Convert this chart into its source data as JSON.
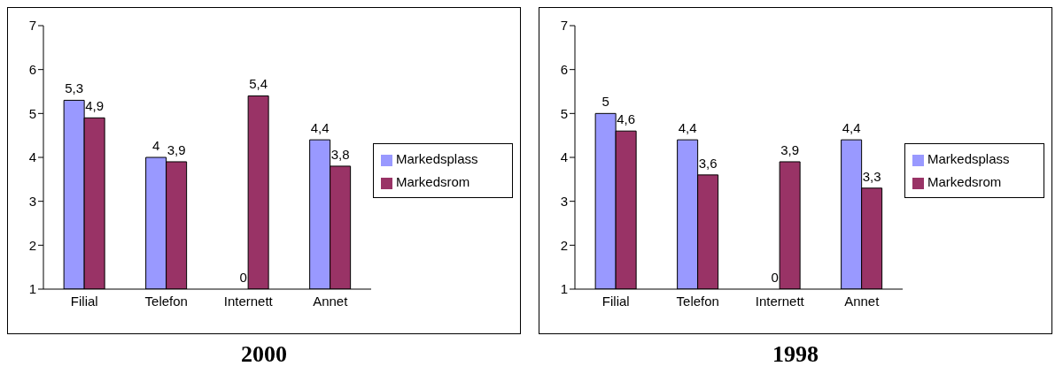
{
  "chart_data": [
    {
      "type": "bar",
      "title": "2000",
      "categories": [
        "Filial",
        "Telefon",
        "Internett",
        "Annet"
      ],
      "ylim": [
        1,
        7
      ],
      "yticks": [
        1,
        2,
        3,
        4,
        5,
        6,
        7
      ],
      "grid": false,
      "legend": "right",
      "series": [
        {
          "name": "Markedsplass",
          "color": "#9999ff",
          "values": [
            5.3,
            4,
            null,
            4.4
          ],
          "value_labels": [
            "5,3",
            "4",
            "0",
            "4,4"
          ]
        },
        {
          "name": "Markedsrom",
          "color": "#993366",
          "values": [
            4.9,
            3.9,
            5.4,
            3.8
          ],
          "value_labels": [
            "4,9",
            "3,9",
            "5,4",
            "3,8"
          ]
        }
      ]
    },
    {
      "type": "bar",
      "title": "1998",
      "categories": [
        "Filial",
        "Telefon",
        "Internett",
        "Annet"
      ],
      "ylim": [
        1,
        7
      ],
      "yticks": [
        1,
        2,
        3,
        4,
        5,
        6,
        7
      ],
      "grid": false,
      "legend": "right",
      "series": [
        {
          "name": "Markedsplass",
          "color": "#9999ff",
          "values": [
            5,
            4.4,
            null,
            4.4
          ],
          "value_labels": [
            "5",
            "4,4",
            "0",
            "4,4"
          ]
        },
        {
          "name": "Markedsrom",
          "color": "#993366",
          "values": [
            4.6,
            3.6,
            3.9,
            3.3
          ],
          "value_labels": [
            "4,6",
            "3,6",
            "3,9",
            "3,3"
          ]
        }
      ]
    }
  ]
}
